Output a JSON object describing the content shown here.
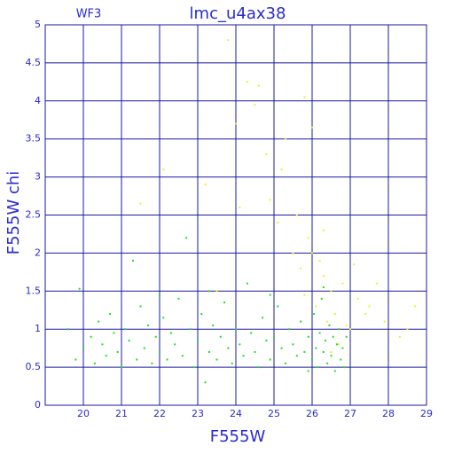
{
  "chart_data": {
    "type": "scatter",
    "title": "lmc_u4ax38",
    "subtitle": "WF3",
    "x_label": "F555W",
    "y_label": "F555W  chi",
    "xlim": [
      19,
      29
    ],
    "ylim": [
      0,
      5
    ],
    "xticks": [
      20,
      21,
      22,
      23,
      24,
      25,
      26,
      27,
      28,
      29
    ],
    "yticks": [
      0,
      0.5,
      1,
      1.5,
      2,
      2.5,
      3,
      3.5,
      4,
      4.5,
      5
    ],
    "grid": true,
    "series": [
      {
        "color": "#22dd22",
        "x": [
          19.6,
          19.8,
          19.9,
          20.0,
          20.2,
          20.3,
          20.4,
          20.5,
          20.6,
          20.7,
          20.8,
          20.9,
          21.0,
          21.1,
          21.2,
          21.3,
          21.4,
          21.5,
          21.6,
          21.7,
          21.8,
          21.9,
          22.0,
          22.1,
          22.2,
          22.3,
          22.4,
          22.5,
          22.6,
          22.7,
          22.8,
          22.9,
          23.0,
          23.1,
          23.2,
          23.3,
          23.4,
          23.5,
          23.6,
          23.7,
          23.8,
          23.9,
          24.0,
          24.1,
          24.2,
          24.3,
          24.4,
          24.5,
          24.6,
          24.7,
          24.8,
          24.9,
          25.0,
          25.1,
          25.2,
          25.3,
          25.4,
          25.5,
          25.6,
          25.7,
          25.8,
          25.9,
          26.0,
          26.05,
          26.1,
          26.15,
          26.2,
          26.25,
          26.3,
          26.35,
          26.4,
          26.45,
          26.5,
          26.55,
          26.6,
          26.65,
          26.7,
          26.75,
          26.8,
          26.85,
          26.9,
          26.3,
          25.9,
          24.9,
          23.3,
          22.0
        ],
        "values": [
          1.0,
          0.6,
          1.53,
          0.75,
          0.9,
          0.55,
          1.1,
          0.8,
          0.65,
          1.2,
          0.95,
          0.7,
          0.5,
          1.0,
          0.85,
          1.9,
          0.6,
          1.3,
          0.75,
          1.05,
          0.55,
          0.9,
          0.7,
          1.15,
          0.6,
          0.95,
          0.8,
          1.4,
          0.65,
          2.2,
          1.0,
          0.5,
          0.85,
          1.2,
          0.3,
          0.7,
          1.05,
          0.6,
          0.9,
          1.35,
          0.75,
          0.55,
          1.0,
          0.8,
          0.65,
          1.6,
          0.95,
          0.7,
          0.5,
          1.15,
          0.85,
          0.6,
          0.9,
          1.3,
          0.75,
          0.55,
          1.0,
          0.8,
          0.65,
          1.1,
          0.7,
          0.9,
          0.6,
          1.2,
          0.75,
          0.5,
          0.95,
          1.4,
          0.7,
          0.85,
          0.55,
          1.05,
          0.65,
          0.9,
          0.45,
          0.8,
          1.0,
          0.6,
          0.75,
          0.5,
          0.9,
          1.55,
          0.45,
          1.45,
          1.5,
          1.45
        ]
      },
      {
        "color": "#f0f020",
        "x": [
          24.3,
          24.6,
          24.5,
          23.8,
          24.0,
          25.2,
          25.3,
          26.0,
          25.8,
          24.1,
          24.9,
          25.1,
          25.6,
          25.9,
          26.0,
          26.2,
          25.7,
          26.3,
          26.5,
          26.8,
          27.2,
          27.5,
          27.9,
          28.3,
          28.7,
          28.5,
          27.0,
          26.6,
          26.4,
          26.1,
          25.8,
          26.7,
          26.5,
          26.9,
          27.7,
          27.1,
          24.8,
          23.2,
          22.1,
          21.5,
          23.5,
          25.5,
          26.3,
          27.4
        ],
        "values": [
          4.25,
          4.2,
          3.95,
          4.8,
          3.7,
          3.1,
          3.5,
          3.65,
          4.05,
          2.6,
          2.7,
          2.4,
          2.5,
          2.2,
          2.0,
          1.9,
          1.8,
          1.7,
          1.5,
          1.6,
          1.4,
          1.3,
          1.1,
          0.9,
          1.3,
          1.0,
          1.0,
          1.2,
          1.1,
          1.3,
          1.45,
          0.8,
          0.7,
          1.05,
          1.6,
          1.85,
          3.3,
          2.9,
          3.1,
          2.65,
          1.5,
          2.0,
          2.3,
          1.2
        ]
      }
    ]
  }
}
